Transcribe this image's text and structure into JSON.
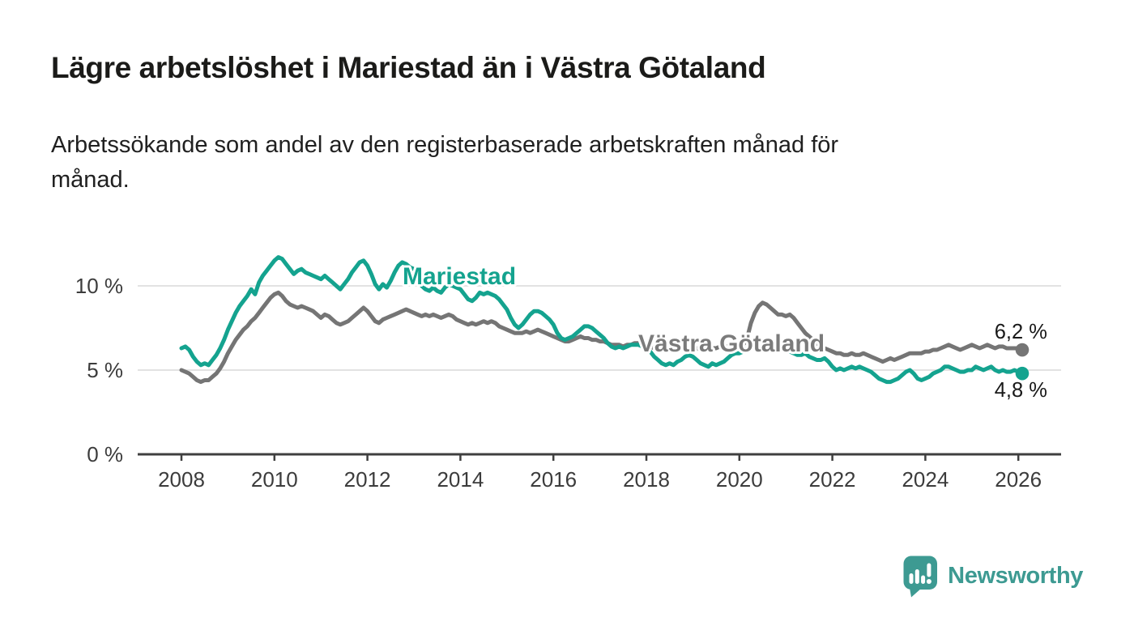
{
  "header": {
    "title": "Lägre arbetslöshet i Mariestad än i Västra Götaland",
    "subtitle": "Arbetssökande som andel av den registerbaserade arbetskraften månad för\nmånad."
  },
  "colors": {
    "background": "#ffffff",
    "axis": "#3f3f3f",
    "grid": "#d9d9d9",
    "tick_text": "#3c3c3c",
    "title_text": "#1b1b19",
    "end_label_text": "#191919",
    "accent_teal": "#14a38f",
    "accent_gray": "#757575"
  },
  "branding": {
    "logo_text": "Newsworthy",
    "logo_color": "#3d9a92"
  },
  "chart_data": {
    "type": "line",
    "title": "Lägre arbetslöshet i Mariestad än i Västra Götaland",
    "subtitle": "Arbetssökande som andel av den registerbaserade arbetskraften månad för månad.",
    "unit": "%",
    "frequency": "monthly",
    "x_start": "2008-01",
    "x_end": "2026-02",
    "x_tick_labels": [
      "2008",
      "2010",
      "2012",
      "2014",
      "2016",
      "2018",
      "2020",
      "2022",
      "2024",
      "2026"
    ],
    "y_ticks": [
      {
        "value": 0,
        "label": "0 %"
      },
      {
        "value": 5,
        "label": "5 %"
      },
      {
        "value": 10,
        "label": "10 %"
      }
    ],
    "ylim": [
      0,
      12.2
    ],
    "grid": "horizontal-only",
    "legend": "inline-labels",
    "series": [
      {
        "name": "Västra Götaland",
        "color": "#757575",
        "label_color": "#7b7b7b",
        "end_label": "6,2 %",
        "end_value": 6.2,
        "values": [
          5.0,
          4.9,
          4.8,
          4.6,
          4.4,
          4.3,
          4.4,
          4.4,
          4.6,
          4.8,
          5.1,
          5.5,
          6.0,
          6.4,
          6.8,
          7.1,
          7.4,
          7.6,
          7.9,
          8.1,
          8.4,
          8.7,
          9.0,
          9.3,
          9.5,
          9.6,
          9.4,
          9.1,
          8.9,
          8.8,
          8.7,
          8.8,
          8.7,
          8.6,
          8.5,
          8.3,
          8.1,
          8.3,
          8.2,
          8.0,
          7.8,
          7.7,
          7.8,
          7.9,
          8.1,
          8.3,
          8.5,
          8.7,
          8.5,
          8.2,
          7.9,
          7.8,
          8.0,
          8.1,
          8.2,
          8.3,
          8.4,
          8.5,
          8.6,
          8.5,
          8.4,
          8.3,
          8.2,
          8.3,
          8.2,
          8.3,
          8.2,
          8.1,
          8.2,
          8.3,
          8.2,
          8.0,
          7.9,
          7.8,
          7.7,
          7.8,
          7.7,
          7.8,
          7.9,
          7.8,
          7.9,
          7.8,
          7.6,
          7.5,
          7.4,
          7.3,
          7.2,
          7.2,
          7.2,
          7.3,
          7.2,
          7.3,
          7.4,
          7.3,
          7.2,
          7.1,
          7.0,
          6.9,
          6.8,
          6.7,
          6.7,
          6.8,
          6.9,
          7.0,
          6.9,
          6.9,
          6.8,
          6.8,
          6.7,
          6.7,
          6.6,
          6.5,
          6.5,
          6.5,
          6.4,
          6.5,
          6.5,
          6.6,
          6.6,
          6.5,
          6.5,
          6.4,
          6.3,
          6.3,
          6.2,
          6.2,
          6.2,
          6.3,
          6.3,
          6.4,
          6.4,
          6.4,
          6.3,
          6.3,
          6.2,
          6.2,
          6.2,
          6.3,
          6.3,
          6.4,
          6.4,
          6.4,
          6.4,
          6.4,
          6.4,
          6.5,
          6.9,
          7.8,
          8.4,
          8.8,
          9.0,
          8.9,
          8.7,
          8.5,
          8.3,
          8.3,
          8.2,
          8.3,
          8.1,
          7.8,
          7.5,
          7.2,
          7.0,
          6.8,
          6.6,
          6.4,
          6.3,
          6.2,
          6.1,
          6.0,
          6.0,
          5.9,
          5.9,
          6.0,
          5.9,
          5.9,
          6.0,
          5.9,
          5.8,
          5.7,
          5.6,
          5.5,
          5.6,
          5.7,
          5.6,
          5.7,
          5.8,
          5.9,
          6.0,
          6.0,
          6.0,
          6.0,
          6.1,
          6.1,
          6.2,
          6.2,
          6.3,
          6.4,
          6.5,
          6.4,
          6.3,
          6.2,
          6.3,
          6.4,
          6.5,
          6.4,
          6.3,
          6.4,
          6.5,
          6.4,
          6.3,
          6.4,
          6.4,
          6.3,
          6.3,
          6.3,
          6.3,
          6.2
        ]
      },
      {
        "name": "Mariestad",
        "color": "#14a38f",
        "label_color": "#14a38f",
        "end_label": "4,8 %",
        "end_value": 4.8,
        "values": [
          6.3,
          6.4,
          6.2,
          5.8,
          5.5,
          5.3,
          5.4,
          5.3,
          5.6,
          5.9,
          6.3,
          6.8,
          7.4,
          7.9,
          8.4,
          8.8,
          9.1,
          9.4,
          9.8,
          9.5,
          10.2,
          10.6,
          10.9,
          11.2,
          11.5,
          11.7,
          11.6,
          11.3,
          11.0,
          10.7,
          10.9,
          11.0,
          10.8,
          10.7,
          10.6,
          10.5,
          10.4,
          10.6,
          10.4,
          10.2,
          10.0,
          9.8,
          10.1,
          10.4,
          10.8,
          11.1,
          11.4,
          11.5,
          11.2,
          10.7,
          10.1,
          9.8,
          10.1,
          9.9,
          10.3,
          10.8,
          11.2,
          11.4,
          11.3,
          11.1,
          11.0,
          10.5,
          10.0,
          9.8,
          9.7,
          9.9,
          9.7,
          9.6,
          9.9,
          10.1,
          10.0,
          9.9,
          9.8,
          9.5,
          9.2,
          9.1,
          9.3,
          9.6,
          9.5,
          9.6,
          9.5,
          9.4,
          9.2,
          8.9,
          8.6,
          8.1,
          7.7,
          7.5,
          7.7,
          8.0,
          8.3,
          8.5,
          8.5,
          8.4,
          8.2,
          8.0,
          7.7,
          7.2,
          6.9,
          6.8,
          6.9,
          7.0,
          7.2,
          7.4,
          7.6,
          7.6,
          7.5,
          7.3,
          7.1,
          6.9,
          6.6,
          6.4,
          6.3,
          6.4,
          6.3,
          6.4,
          6.5,
          6.5,
          6.5,
          6.4,
          6.3,
          6.1,
          5.8,
          5.6,
          5.4,
          5.3,
          5.4,
          5.3,
          5.5,
          5.6,
          5.8,
          5.9,
          5.8,
          5.6,
          5.4,
          5.3,
          5.2,
          5.4,
          5.3,
          5.4,
          5.5,
          5.7,
          5.9,
          6.0,
          6.0,
          6.1,
          6.3,
          6.5,
          6.6,
          6.7,
          6.6,
          6.5,
          6.4,
          6.3,
          6.2,
          6.3,
          6.2,
          6.1,
          6.0,
          5.9,
          5.9,
          6.0,
          5.8,
          5.7,
          5.6,
          5.6,
          5.7,
          5.5,
          5.2,
          5.0,
          5.1,
          5.0,
          5.1,
          5.2,
          5.1,
          5.2,
          5.1,
          5.0,
          4.9,
          4.7,
          4.5,
          4.4,
          4.3,
          4.3,
          4.4,
          4.5,
          4.7,
          4.9,
          5.0,
          4.8,
          4.5,
          4.4,
          4.5,
          4.6,
          4.8,
          4.9,
          5.0,
          5.2,
          5.2,
          5.1,
          5.0,
          4.9,
          4.9,
          5.0,
          5.0,
          5.2,
          5.1,
          5.0,
          5.1,
          5.2,
          5.0,
          4.9,
          5.0,
          4.9,
          4.9,
          5.0,
          4.9,
          4.8
        ]
      }
    ]
  }
}
